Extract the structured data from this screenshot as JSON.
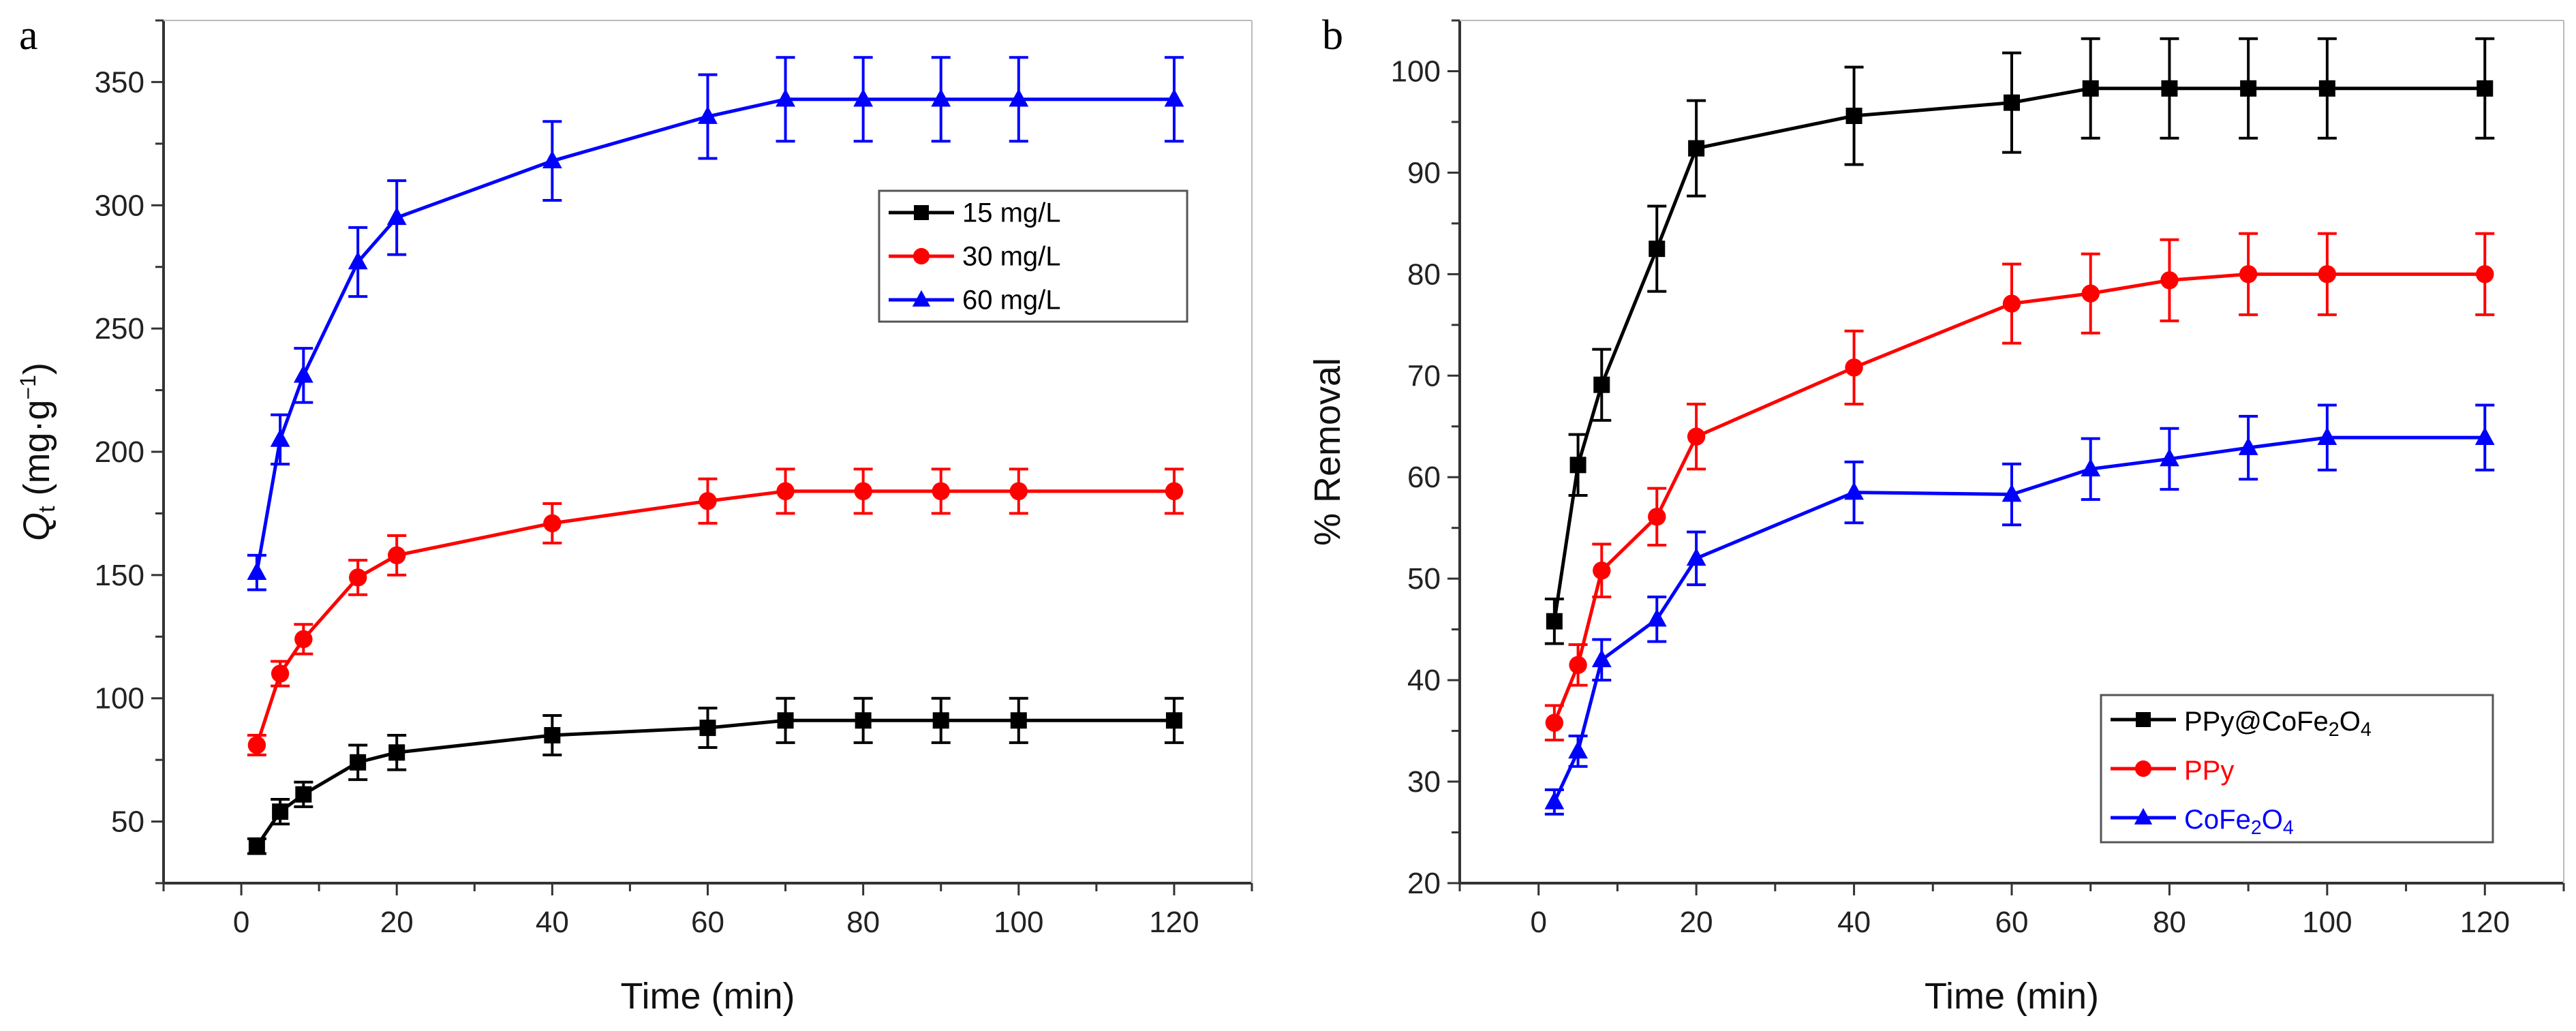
{
  "chart_data": [
    {
      "type": "line",
      "panel_label": "a",
      "xlabel": "Time (min)",
      "ylabel": "Q",
      "ylabel_sub": "t",
      "ylabel_unit": " (mg·g",
      "ylabel_sup": "−1",
      "ylabel_close": ")",
      "xlim": [
        -10,
        130
      ],
      "ylim": [
        25,
        375
      ],
      "xticks": [
        0,
        20,
        40,
        60,
        80,
        100,
        120
      ],
      "yticks": [
        50,
        100,
        150,
        200,
        250,
        300,
        350
      ],
      "grid": false,
      "legend_position": "upper-right",
      "x": [
        2,
        5,
        8,
        15,
        20,
        40,
        60,
        70,
        80,
        90,
        100,
        120
      ],
      "series": [
        {
          "name": "15 mg/L",
          "color": "#000000",
          "marker": "square",
          "values": [
            40,
            54,
            61,
            74,
            78,
            85,
            88,
            91,
            91,
            91,
            91,
            91
          ],
          "errors": [
            3,
            5,
            5,
            7,
            7,
            8,
            8,
            9,
            9,
            9,
            9,
            9
          ]
        },
        {
          "name": "30 mg/L",
          "color": "#ff0000",
          "marker": "circle",
          "values": [
            81,
            110,
            124,
            149,
            158,
            171,
            180,
            184,
            184,
            184,
            184,
            184
          ],
          "errors": [
            4,
            5,
            6,
            7,
            8,
            8,
            9,
            9,
            9,
            9,
            9,
            9
          ]
        },
        {
          "name": "60 mg/L",
          "color": "#0000ff",
          "marker": "triangle",
          "values": [
            151,
            205,
            231,
            277,
            295,
            318,
            336,
            343,
            343,
            343,
            343,
            343
          ],
          "errors": [
            7,
            10,
            11,
            14,
            15,
            16,
            17,
            17,
            17,
            17,
            17,
            17
          ]
        }
      ]
    },
    {
      "type": "line",
      "panel_label": "b",
      "xlabel": "Time (min)",
      "ylabel": "% Removal",
      "xlim": [
        -10,
        130
      ],
      "ylim": [
        20,
        105
      ],
      "xticks": [
        0,
        20,
        40,
        60,
        80,
        100,
        120
      ],
      "yticks": [
        20,
        30,
        40,
        50,
        60,
        70,
        80,
        90,
        100
      ],
      "grid": false,
      "legend_position": "lower-right",
      "x": [
        2,
        5,
        8,
        15,
        20,
        40,
        60,
        70,
        80,
        90,
        100,
        120
      ],
      "series": [
        {
          "name": "PPy@CoFe2O4",
          "color": "#000000",
          "marker": "square",
          "values": [
            45.8,
            61.2,
            69.1,
            82.5,
            92.4,
            95.6,
            96.9,
            98.3,
            98.3,
            98.3,
            98.3,
            98.3
          ],
          "errors": [
            2.2,
            3,
            3.5,
            4.2,
            4.7,
            4.8,
            4.9,
            4.9,
            4.9,
            4.9,
            4.9,
            4.9
          ]
        },
        {
          "name": "PPy",
          "color": "#ff0000",
          "marker": "circle",
          "values": [
            35.8,
            41.5,
            50.8,
            56.1,
            64,
            70.8,
            77.1,
            78.1,
            79.4,
            80,
            80,
            80
          ],
          "errors": [
            1.7,
            2,
            2.6,
            2.8,
            3.2,
            3.6,
            3.9,
            3.9,
            4,
            4,
            4,
            4
          ]
        },
        {
          "name": "CoFe2O4",
          "color": "#0000ff",
          "marker": "triangle",
          "values": [
            28,
            33,
            42,
            46,
            52,
            58.5,
            58.3,
            60.8,
            61.8,
            62.9,
            63.9,
            63.9
          ],
          "errors": [
            1.2,
            1.5,
            2,
            2.2,
            2.6,
            3,
            3,
            3,
            3,
            3.1,
            3.2,
            3.2
          ]
        }
      ]
    }
  ]
}
